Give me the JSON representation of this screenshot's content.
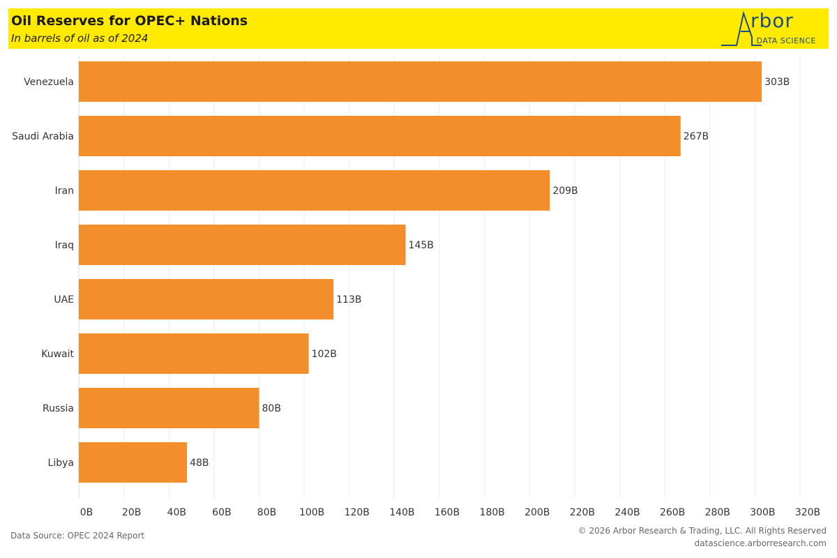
{
  "header": {
    "title": "Oil Reserves for OPEC+ Nations",
    "subtitle": "In barrels of oil as of 2024"
  },
  "logo": {
    "word": "rbor",
    "tagline": "DATA SCIENCE"
  },
  "colors": {
    "header_bg": "#ffea00",
    "bar": "#f28e2b",
    "logo": "#1c4e80"
  },
  "chart_data": {
    "type": "bar",
    "orientation": "horizontal",
    "categories": [
      "Venezuela",
      "Saudi Arabia",
      "Iran",
      "Iraq",
      "UAE",
      "Kuwait",
      "Russia",
      "Libya"
    ],
    "values": [
      303,
      267,
      209,
      145,
      113,
      102,
      80,
      48
    ],
    "value_labels": [
      "303B",
      "267B",
      "209B",
      "145B",
      "113B",
      "102B",
      "80B",
      "48B"
    ],
    "xlim": [
      0,
      320
    ],
    "xticks": [
      0,
      20,
      40,
      60,
      80,
      100,
      120,
      140,
      160,
      180,
      200,
      220,
      240,
      260,
      280,
      300,
      320
    ],
    "xtick_labels": [
      "0B",
      "20B",
      "40B",
      "60B",
      "80B",
      "100B",
      "120B",
      "140B",
      "160B",
      "180B",
      "200B",
      "220B",
      "240B",
      "260B",
      "280B",
      "300B",
      "320B"
    ],
    "grid": true,
    "xlabel": "",
    "ylabel": ""
  },
  "footer": {
    "source": "Data Source: OPEC 2024 Report",
    "copyright": "© 2026 Arbor Research & Trading, LLC. All Rights Reserved",
    "website": "datascience.arborresearch.com"
  }
}
